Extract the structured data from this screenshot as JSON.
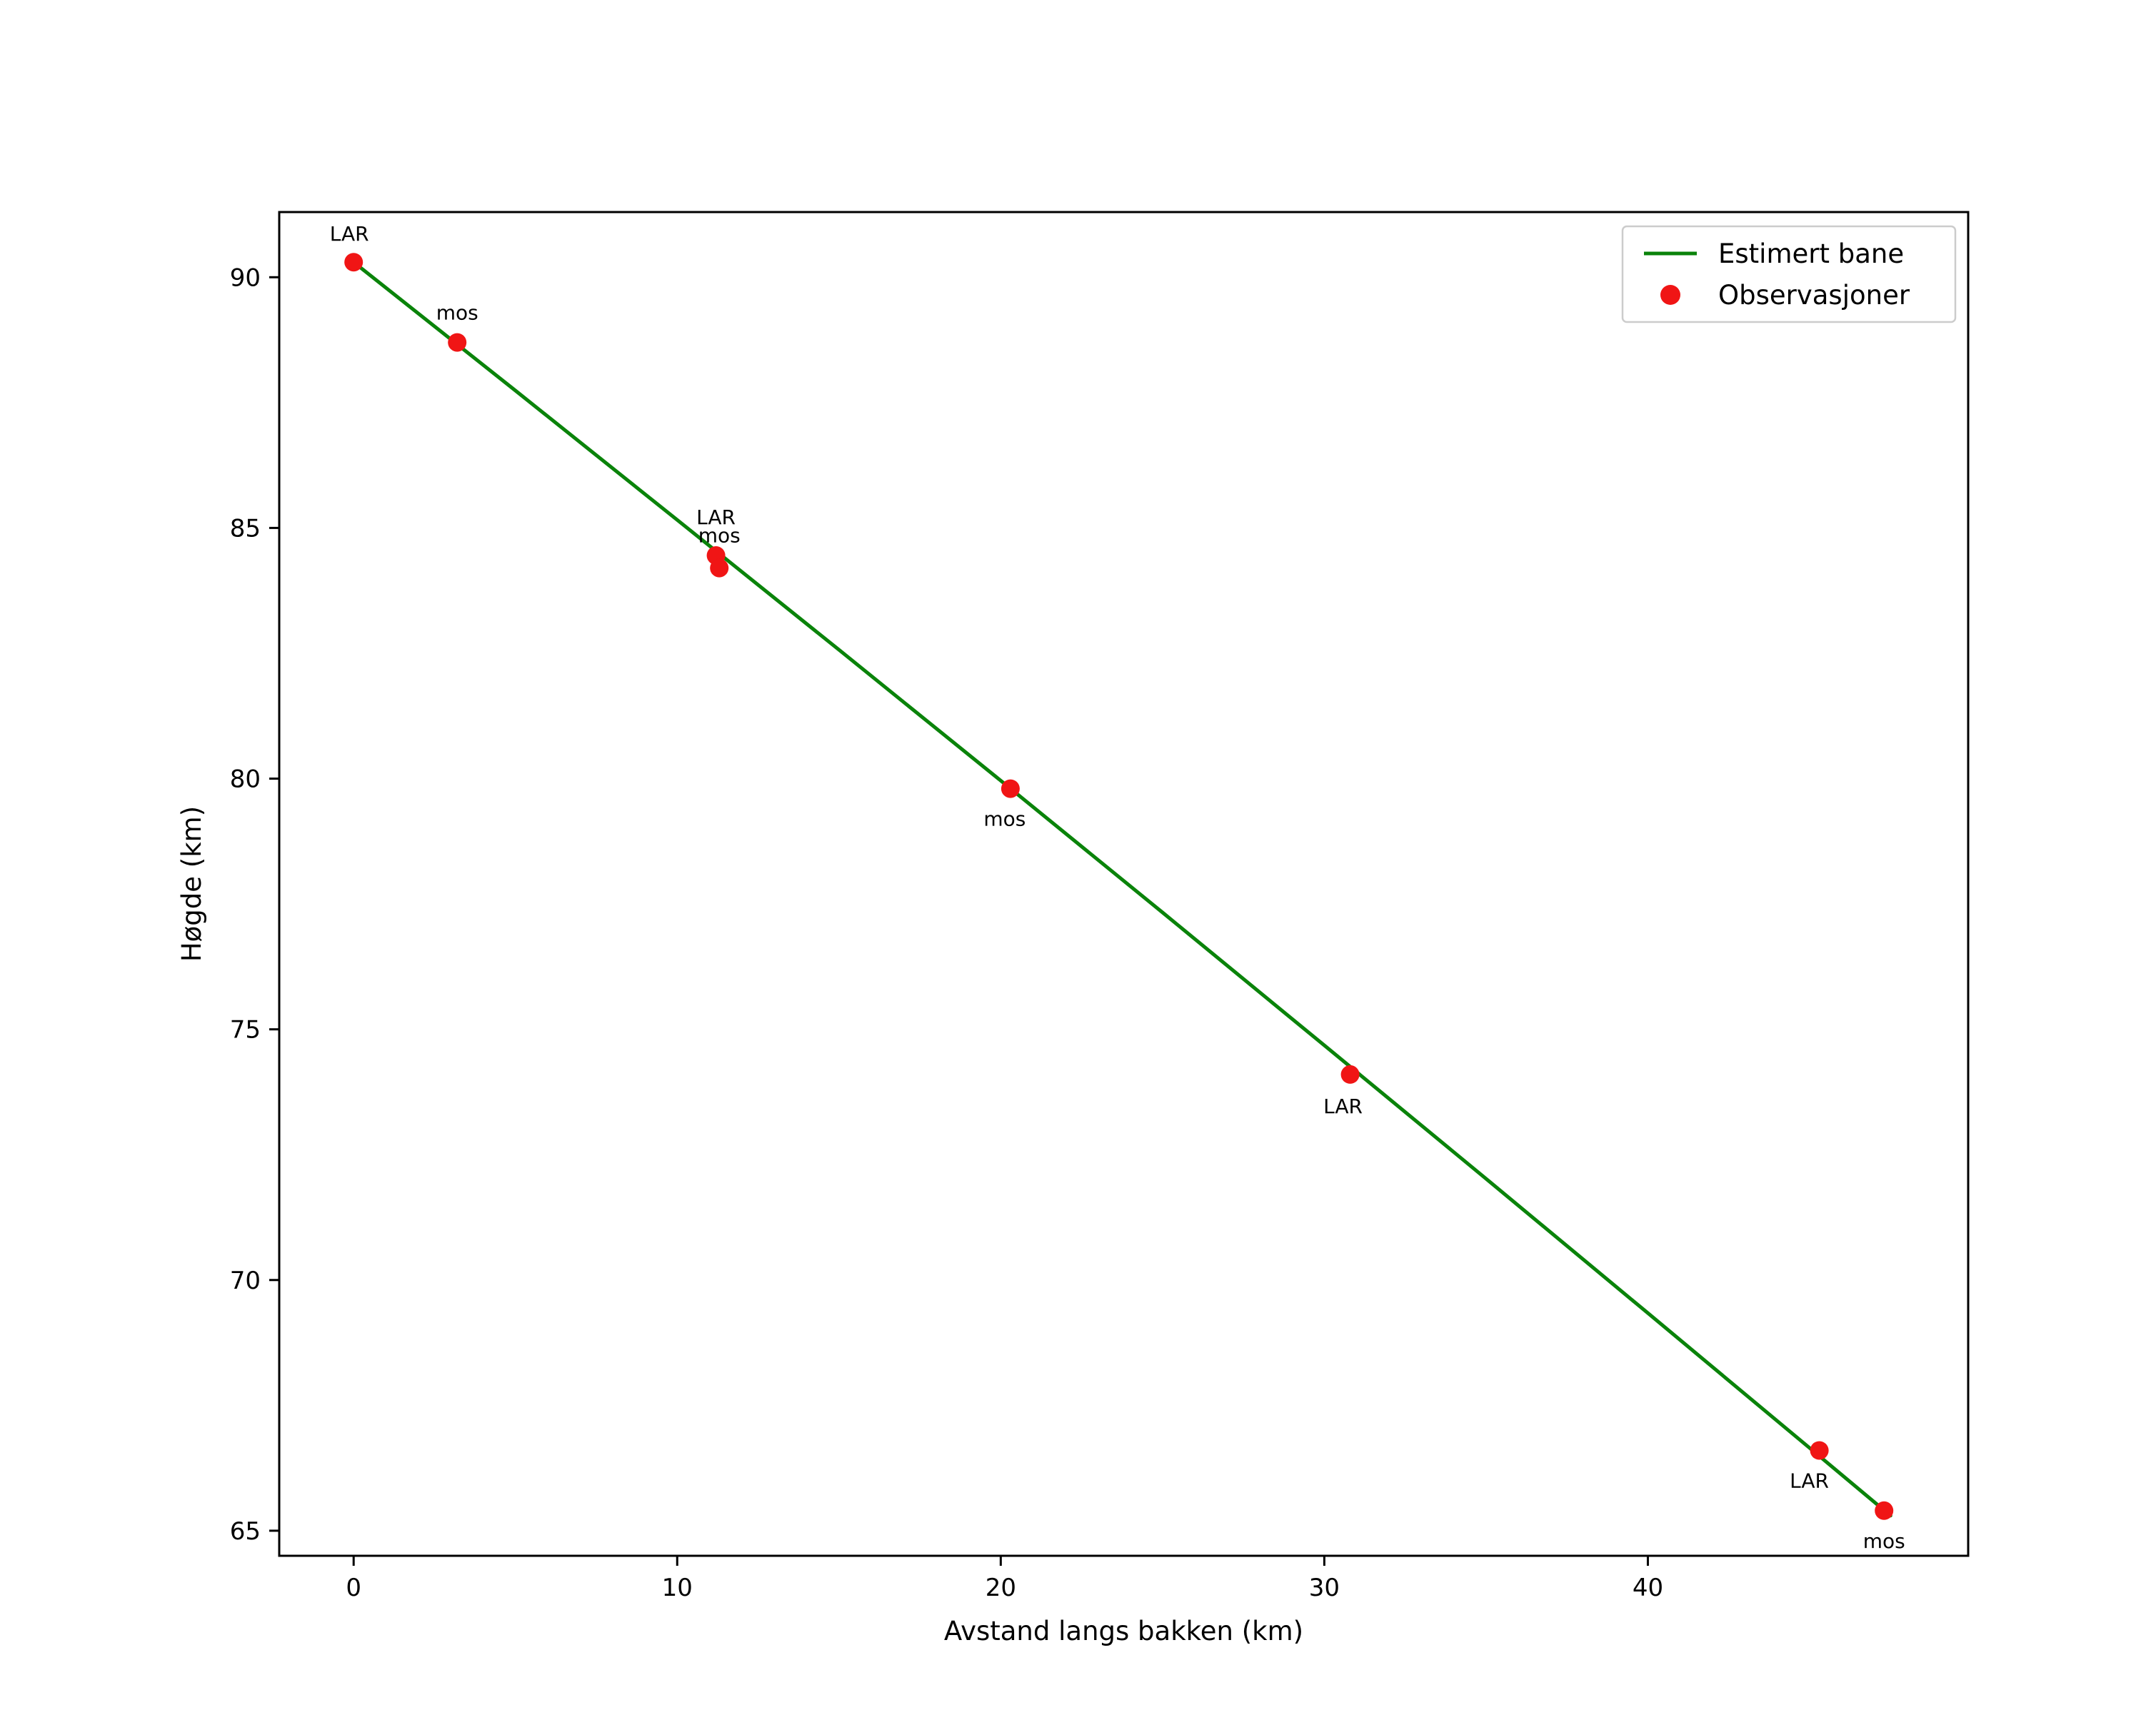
{
  "figure": {
    "background": "#ffffff"
  },
  "chart_data": {
    "type": "line",
    "title": "",
    "xlabel": "Avstand langs bakken (km)",
    "ylabel": "Høgde (km)",
    "xlim": [
      -2.3,
      49.9
    ],
    "ylim": [
      64.5,
      91.3
    ],
    "xticks": [
      0,
      10,
      20,
      30,
      40
    ],
    "yticks": [
      65,
      70,
      75,
      80,
      85,
      90
    ],
    "grid": false,
    "axis_color": "#000000",
    "legend": {
      "position": "upper-right",
      "edge_color": "#cccccc",
      "entries": [
        {
          "label": "Estimert bane",
          "marker": "line",
          "color": "#0a830a"
        },
        {
          "label": "Observasjoner",
          "marker": "dot",
          "color": "#f01515"
        }
      ]
    },
    "series": [
      {
        "name": "Estimert bane",
        "type": "line",
        "color": "#0a830a",
        "x": [
          0,
          5,
          10,
          15,
          20,
          25,
          30,
          35,
          40,
          45,
          47.5
        ],
        "y": [
          90.3,
          87.74,
          85.16,
          82.57,
          79.96,
          77.33,
          74.68,
          72.02,
          69.34,
          66.65,
          65.3
        ]
      },
      {
        "name": "Observasjoner",
        "type": "scatter",
        "color": "#f01515",
        "points": [
          {
            "x": 0,
            "y": 90.3,
            "label": "LAR",
            "dx": -6,
            "dy": -30
          },
          {
            "x": 3.2,
            "y": 88.7,
            "label": "mos",
            "dx": 0,
            "dy": -32
          },
          {
            "x": 11.2,
            "y": 84.45,
            "label": "LAR",
            "dx": 0,
            "dy": -44
          },
          {
            "x": 11.3,
            "y": 84.2,
            "label": "mos",
            "dx": 0,
            "dy": -36
          },
          {
            "x": 20.3,
            "y": 79.8,
            "label": "mos",
            "dx": -8,
            "dy": 52
          },
          {
            "x": 30.8,
            "y": 74.1,
            "label": "LAR",
            "dx": -10,
            "dy": 54
          },
          {
            "x": 45.3,
            "y": 66.6,
            "label": "LAR",
            "dx": -14,
            "dy": 52
          },
          {
            "x": 47.3,
            "y": 65.4,
            "label": "mos",
            "dx": 0,
            "dy": 52
          }
        ]
      }
    ]
  }
}
